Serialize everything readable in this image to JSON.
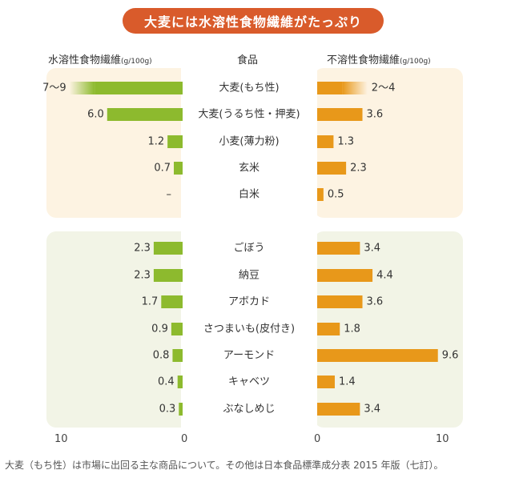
{
  "title": "大麦には水溶性食物繊維がたっぷり",
  "headers": {
    "left": "水溶性食物繊維",
    "left_unit": "(g/100g)",
    "center": "食品",
    "right": "不溶性食物繊維",
    "right_unit": "(g/100g)"
  },
  "axis": {
    "left_ticks": [
      "10",
      "0"
    ],
    "right_ticks": [
      "0",
      "10"
    ]
  },
  "colors": {
    "soluble": "#8dba2e",
    "insoluble": "#e8981a",
    "title_bg": "#d95b2b",
    "panel_grain": "#fdf3e2",
    "panel_other": "#f2f4e6"
  },
  "footnote": "大麦（もち性）は市場に出回る主な商品について。その他は日本食品標準成分表 2015 年版（七訂）。",
  "chart_data": {
    "type": "bar",
    "groups": [
      "grains",
      "others"
    ],
    "categories": [
      "大麦(もち性)",
      "大麦(うるち性・押麦)",
      "小麦(薄力粉)",
      "玄米",
      "白米",
      "ごぼう",
      "納豆",
      "アボカド",
      "さつまいも(皮付き)",
      "アーモンド",
      "キャベツ",
      "ぶなしめじ"
    ],
    "category_groups": [
      "grains",
      "grains",
      "grains",
      "grains",
      "grains",
      "others",
      "others",
      "others",
      "others",
      "others",
      "others",
      "others"
    ],
    "xlim": [
      0,
      10
    ],
    "series": [
      {
        "name": "水溶性食物繊維",
        "direction": "left",
        "values": [
          9,
          6.0,
          1.2,
          0.7,
          0,
          2.3,
          2.3,
          1.7,
          0.9,
          0.8,
          0.4,
          0.3
        ],
        "range_min": [
          7,
          null,
          null,
          null,
          null,
          null,
          null,
          null,
          null,
          null,
          null,
          null
        ],
        "labels": [
          "7〜9",
          "6.0",
          "1.2",
          "0.7",
          "–",
          "2.3",
          "2.3",
          "1.7",
          "0.9",
          "0.8",
          "0.4",
          "0.3"
        ]
      },
      {
        "name": "不溶性食物繊維",
        "direction": "right",
        "values": [
          4,
          3.6,
          1.3,
          2.3,
          0.5,
          3.4,
          4.4,
          3.6,
          1.8,
          9.6,
          1.4,
          3.4
        ],
        "range_min": [
          2,
          null,
          null,
          null,
          null,
          null,
          null,
          null,
          null,
          null,
          null,
          null
        ],
        "labels": [
          "2〜4",
          "3.6",
          "1.3",
          "2.3",
          "0.5",
          "3.4",
          "4.4",
          "3.6",
          "1.8",
          "9.6",
          "1.4",
          "3.4"
        ]
      }
    ]
  }
}
